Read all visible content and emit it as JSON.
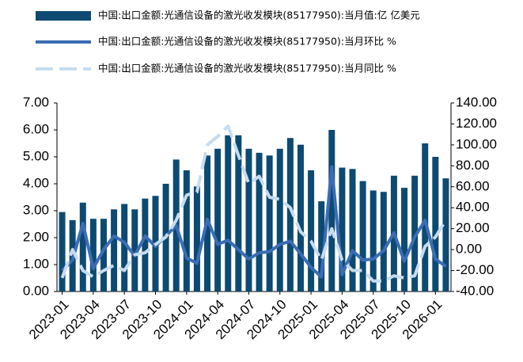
{
  "chart_data": {
    "type": "bar_line",
    "categories": [
      "2023-01",
      null,
      null,
      "2023-04",
      null,
      null,
      "2023-07",
      null,
      null,
      "2023-10",
      null,
      null,
      "2024-01",
      null,
      null,
      "2024-04",
      null,
      null,
      "2024-07",
      null,
      null,
      "2024-10",
      null,
      null,
      "2025-01",
      null,
      null,
      "2025-04",
      null,
      null,
      "2025-07",
      null,
      null,
      "2025-10",
      null,
      null,
      "2026-01",
      null
    ],
    "series": [
      {
        "name": "中国:出口金额:光通信设备的激光收发模块(85177950):当月值:亿 亿美元",
        "color": "#0d4a72",
        "kind": "bar",
        "values": [
          2.95,
          2.65,
          3.3,
          2.7,
          2.7,
          3.05,
          3.25,
          3.05,
          3.45,
          3.55,
          4.0,
          4.9,
          4.5,
          3.9,
          5.05,
          5.3,
          5.8,
          5.8,
          5.3,
          5.15,
          5.05,
          5.3,
          5.7,
          5.45,
          4.5,
          3.35,
          6.0,
          4.6,
          4.55,
          4.1,
          3.75,
          3.7,
          4.3,
          3.85,
          4.3,
          5.5,
          5.0,
          4.2
        ]
      },
      {
        "name": "中国:出口金额:光通信设备的激光收发模块(85177950):当月环比 %",
        "color": "#3b6db5",
        "kind": "line",
        "axis": "y2",
        "values": [
          -20,
          -10,
          25,
          -18,
          0,
          13,
          7,
          -6,
          13,
          3,
          13,
          23,
          -8,
          -13,
          29,
          5,
          9,
          0,
          -9,
          -3,
          -2,
          5,
          8,
          -4,
          -17,
          -26,
          79,
          -24,
          -1,
          -10,
          -9,
          -1,
          16,
          -11,
          12,
          28,
          -9,
          -16
        ]
      },
      {
        "name": "中国:出口金额:光通信设备的激光收发模块(85177950):当月同比 %",
        "color": "#c6dcef",
        "kind": "dashed",
        "axis": "y2",
        "values": [
          -27,
          0,
          -20,
          -26,
          -20,
          -15,
          -20,
          -5,
          -3,
          5,
          12,
          28,
          52,
          55,
          100,
          108,
          118,
          90,
          63,
          70,
          50,
          48,
          40,
          17,
          8,
          -10,
          20,
          -10,
          -20,
          -20,
          -30,
          -30,
          -25,
          -27,
          -25,
          3,
          12,
          28
        ]
      }
    ],
    "ylim": [
      0,
      7
    ],
    "yticks": [
      {
        "value": 0,
        "label": "0.00"
      },
      {
        "value": 1,
        "label": "1.00"
      },
      {
        "value": 2,
        "label": "2.00"
      },
      {
        "value": 3,
        "label": "3.00"
      },
      {
        "value": 4,
        "label": "4.00"
      },
      {
        "value": 5,
        "label": "5.00"
      },
      {
        "value": 6,
        "label": "6.00"
      },
      {
        "value": 7,
        "label": "7.00"
      }
    ],
    "y2lim": [
      -40,
      140
    ],
    "y2ticks": [
      {
        "value": -40,
        "label": "-40.00"
      },
      {
        "value": -20,
        "label": "-20.00"
      },
      {
        "value": 0,
        "label": "0.00"
      },
      {
        "value": 20,
        "label": "20.00"
      },
      {
        "value": 40,
        "label": "40.00"
      },
      {
        "value": 60,
        "label": "60.00"
      },
      {
        "value": 80,
        "label": "80.00"
      },
      {
        "value": 100,
        "label": "100.00"
      },
      {
        "value": 120,
        "label": "120.00"
      },
      {
        "value": 140,
        "label": "140.00"
      }
    ]
  }
}
